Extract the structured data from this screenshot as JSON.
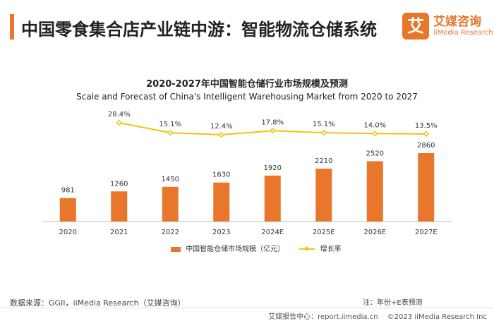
{
  "header": {
    "title": "中国零食集合店产业链中游：智能物流仓储系统"
  },
  "logo": {
    "mark": "艾",
    "name_cn": "艾媒咨询",
    "name_en": "iiMedia Research"
  },
  "chart_data": {
    "type": "bar",
    "title": "2020-2027年中国智能仓储行业市场规模及预测",
    "subtitle": "Scale and Forecast of China's Intelligent Warehousing Market from 2020 to 2027",
    "categories": [
      "2020",
      "2021",
      "2022",
      "2023",
      "2024E",
      "2025E",
      "2026E",
      "2027E"
    ],
    "series": [
      {
        "name": "中国智能仓储市场规模（亿元）",
        "type": "bar",
        "values": [
          981,
          1260,
          1450,
          1630,
          1920,
          2210,
          2520,
          2860
        ],
        "labels": [
          "981",
          "1260",
          "1450",
          "1630",
          "1920",
          "2210",
          "2520",
          "2860"
        ]
      },
      {
        "name": "增长率",
        "type": "line",
        "values": [
          null,
          28.4,
          15.1,
          12.4,
          17.8,
          15.1,
          14.0,
          13.5
        ],
        "labels": [
          "",
          "28.4%",
          "15.1%",
          "12.4%",
          "17.8%",
          "15.1%",
          "14.0%",
          "13.5%"
        ]
      }
    ],
    "legend": [
      "中国智能仓储市场规模（亿元）",
      "增长率"
    ],
    "legend_position": "bottom"
  },
  "colors": {
    "bar": "#e8762b",
    "line": "#f1c40f",
    "axis": "#bbbbbb"
  },
  "note": "注：年份+E表预测",
  "source": "数据来源：GGII，iiMedia Research（艾媒咨询）",
  "footer": {
    "center": "艾媒报告中心：report.iimedia.cn",
    "copyright": "©2023  iiMedia Research  Inc"
  }
}
